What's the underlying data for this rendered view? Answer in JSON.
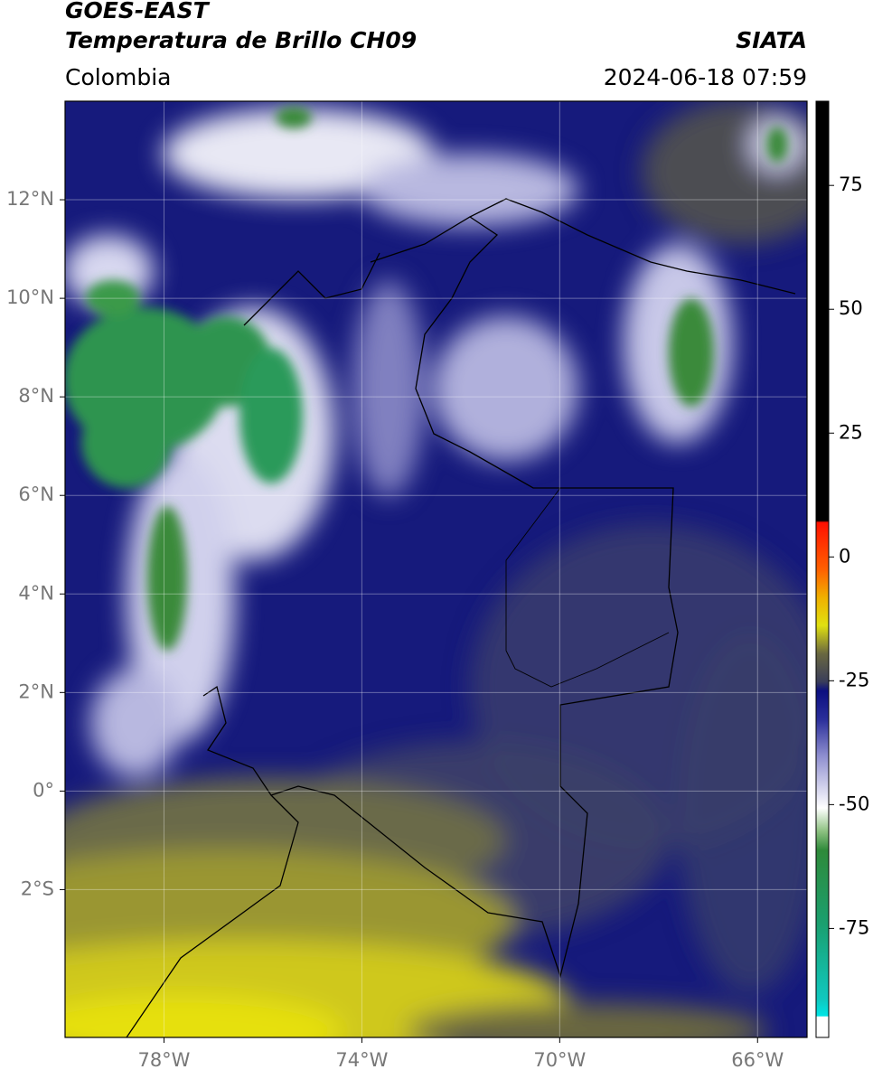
{
  "header": {
    "title": "GOES-EAST",
    "subtitle": "Temperatura de Brillo CH09",
    "source": "SIATA",
    "region": "Colombia",
    "datetime": "2024-06-18 07:59"
  },
  "map": {
    "xlim": [
      -80,
      -65
    ],
    "ylim": [
      -5,
      14
    ],
    "xticks": [
      {
        "value": -78,
        "label": "78°W"
      },
      {
        "value": -74,
        "label": "74°W"
      },
      {
        "value": -70,
        "label": "70°W"
      },
      {
        "value": -66,
        "label": "66°W"
      }
    ],
    "yticks": [
      {
        "value": 12,
        "label": "12°N"
      },
      {
        "value": 10,
        "label": "10°N"
      },
      {
        "value": 8,
        "label": "8°N"
      },
      {
        "value": 6,
        "label": "6°N"
      },
      {
        "value": 4,
        "label": "4°N"
      },
      {
        "value": 2,
        "label": "2°N"
      },
      {
        "value": 0,
        "label": "0°"
      },
      {
        "value": -2,
        "label": "2°S"
      }
    ],
    "grid": true
  },
  "colorbar": {
    "lim": [
      -97,
      92
    ],
    "ticks": [
      75,
      50,
      25,
      0,
      -25,
      -50,
      -75
    ]
  }
}
